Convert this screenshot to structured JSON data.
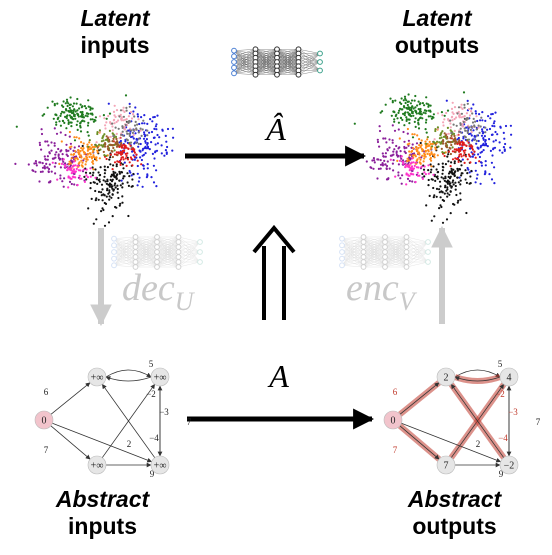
{
  "labels": {
    "latent_inputs": {
      "line1": "Latent",
      "line2": "inputs"
    },
    "latent_outputs": {
      "line1": "Latent",
      "line2": "outputs"
    },
    "abstract_inputs": {
      "line1": "Abstract",
      "line2": "inputs"
    },
    "abstract_outputs": {
      "line1": "Abstract",
      "line2": "outputs"
    }
  },
  "maps": {
    "a_hat": "Â",
    "a": "A",
    "dec": {
      "base": "dec",
      "sub": "U"
    },
    "enc": {
      "base": "enc",
      "sub": "V"
    }
  },
  "graph_inputs": {
    "nodes": [
      "0",
      "+∞",
      "+∞",
      "+∞",
      "+∞"
    ],
    "edges": [
      "6",
      "5",
      "−2",
      "−3",
      "7",
      "−4",
      "2",
      "7",
      "9"
    ]
  },
  "graph_outputs": {
    "nodes": [
      "0",
      "2",
      "4",
      "7",
      "−2"
    ],
    "edges": [
      "6",
      "5",
      "−2",
      "−3",
      "7",
      "−4",
      "2",
      "7",
      "9"
    ]
  },
  "colors": {
    "arrow": "#000000",
    "faded_arrow": "#cccccc",
    "faded_text": "#c8c8c8",
    "source_node": "#f2c4cc",
    "node": "#e6e6e6",
    "highlight_edge": "#c0392b"
  }
}
